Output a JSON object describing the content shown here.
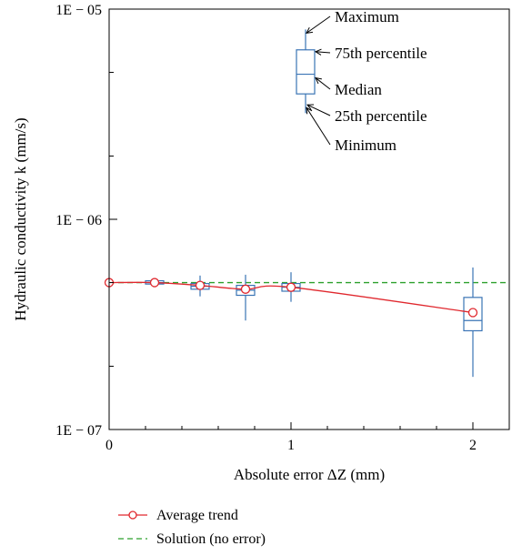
{
  "chart_data": {
    "type": "box",
    "xlabel": "Absolute error ΔZ (mm)",
    "ylabel": "Hydraulic conductivity k (mm/s)",
    "xlim": [
      0,
      2.2
    ],
    "ylim": [
      1e-07,
      1e-05
    ],
    "yscale": "log",
    "x_ticks": [
      {
        "value": 0,
        "label": "0"
      },
      {
        "value": 1,
        "label": "1"
      },
      {
        "value": 2,
        "label": "2"
      }
    ],
    "y_ticks": [
      {
        "value": 1e-05,
        "label": "1E − 05"
      },
      {
        "value": 1e-06,
        "label": "1E − 06"
      },
      {
        "value": 1e-07,
        "label": "1E − 07"
      }
    ],
    "boxes": [
      {
        "x": 0.25,
        "min": 4.85e-07,
        "q1": 4.92e-07,
        "median": 5e-07,
        "q3": 5.1e-07,
        "max": 5.15e-07
      },
      {
        "x": 0.5,
        "min": 4.3e-07,
        "q1": 4.65e-07,
        "median": 4.8e-07,
        "q3": 4.95e-07,
        "max": 5.4e-07
      },
      {
        "x": 0.75,
        "min": 3.3e-07,
        "q1": 4.35e-07,
        "median": 4.6e-07,
        "q3": 4.85e-07,
        "max": 5.45e-07
      },
      {
        "x": 1.0,
        "min": 4.05e-07,
        "q1": 4.55e-07,
        "median": 4.75e-07,
        "q3": 4.95e-07,
        "max": 5.6e-07
      },
      {
        "x": 2.0,
        "min": 1.78e-07,
        "q1": 2.95e-07,
        "median": 3.3e-07,
        "q3": 4.25e-07,
        "max": 5.9e-07
      }
    ],
    "series": [
      {
        "name": "Average trend",
        "type": "line",
        "color": "#e0282e",
        "marker": "open-circle",
        "x": [
          0,
          0.25,
          0.5,
          0.75,
          1.0,
          2.0
        ],
        "y": [
          5e-07,
          5e-07,
          4.85e-07,
          4.65e-07,
          4.75e-07,
          3.6e-07
        ]
      },
      {
        "name": "Solution (no error)",
        "type": "dashed",
        "color": "#2ca02c",
        "x": [
          0,
          2.2
        ],
        "y": [
          5e-07,
          5e-07
        ]
      }
    ],
    "box_color": "#3a74b5",
    "legend_position": "bottom",
    "example_box": {
      "min": 3.2e-06,
      "q1": 3.95e-06,
      "median": 4.9e-06,
      "q3": 6.4e-06,
      "max": 8e-06,
      "labels": [
        "Maximum",
        "75th percentile",
        "Median",
        "25th percentile",
        "Minimum"
      ]
    }
  }
}
